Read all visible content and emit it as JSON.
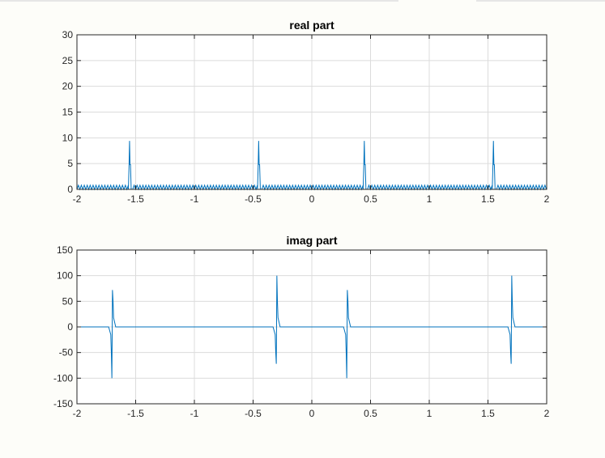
{
  "chart_data": [
    {
      "type": "line",
      "title": "real part",
      "xlabel": "",
      "ylabel": "",
      "xlim": [
        -2,
        2
      ],
      "ylim": [
        0,
        30
      ],
      "xticks": [
        -2,
        -1.5,
        -1,
        -0.5,
        0,
        0.5,
        1,
        1.5,
        2
      ],
      "xtick_labels": [
        "-2",
        "-1.5",
        "-1",
        "-0.5",
        "0",
        "0.5",
        "1",
        "1.5",
        "2"
      ],
      "yticks": [
        0,
        5,
        10,
        15,
        20,
        25,
        30
      ],
      "ytick_labels": [
        "0",
        "5",
        "10",
        "15",
        "20",
        "25",
        "30"
      ],
      "grid": true,
      "color": "#0072BD",
      "baseline_ripple": {
        "low": 0,
        "high": 0.8,
        "period": 0.025
      },
      "spikes": [
        {
          "x": -1.55,
          "peak": 9.4,
          "shoulder": 4.8
        },
        {
          "x": -0.45,
          "peak": 9.4,
          "shoulder": 4.8
        },
        {
          "x": 0.45,
          "peak": 9.4,
          "shoulder": 4.8
        },
        {
          "x": 1.55,
          "peak": 9.4,
          "shoulder": 4.8
        }
      ]
    },
    {
      "type": "line",
      "title": "imag part",
      "xlabel": "",
      "ylabel": "",
      "xlim": [
        -2,
        2
      ],
      "ylim": [
        -150,
        150
      ],
      "xticks": [
        -2,
        -1.5,
        -1,
        -0.5,
        0,
        0.5,
        1,
        1.5,
        2
      ],
      "xtick_labels": [
        "-2",
        "-1.5",
        "-1",
        "-0.5",
        "0",
        "0.5",
        "1",
        "1.5",
        "2"
      ],
      "yticks": [
        -150,
        -100,
        -50,
        0,
        50,
        100,
        150
      ],
      "ytick_labels": [
        "-150",
        "-100",
        "-50",
        "0",
        "50",
        "100",
        "150"
      ],
      "grid": true,
      "color": "#0072BD",
      "spikes": [
        {
          "x": -1.7,
          "values": [
            -15,
            -50,
            -100,
            72,
            52,
            18
          ]
        },
        {
          "x": -0.3,
          "values": [
            -15,
            -50,
            -72,
            100,
            50,
            18
          ]
        },
        {
          "x": 0.3,
          "values": [
            -15,
            -50,
            -100,
            72,
            52,
            18
          ]
        },
        {
          "x": 1.7,
          "values": [
            -15,
            -50,
            -72,
            100,
            50,
            18
          ]
        }
      ]
    }
  ]
}
